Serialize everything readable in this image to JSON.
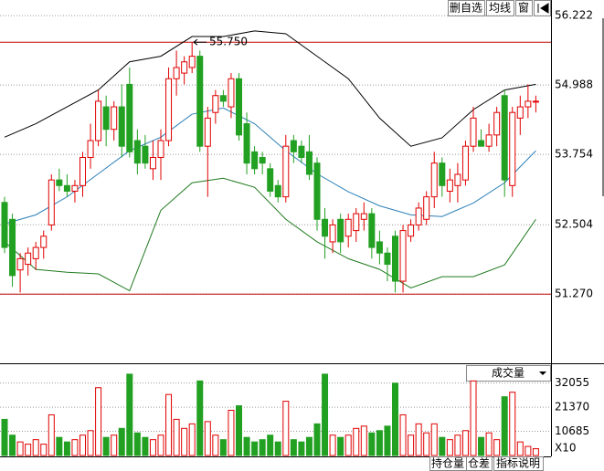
{
  "chart_data": {
    "type": "candlestick",
    "ylim": [
      50.04,
      56.5
    ],
    "yticks": [
      {
        "value": 56.222,
        "label": "56.222"
      },
      {
        "value": 54.988,
        "label": "54.988"
      },
      {
        "value": 53.754,
        "label": "53.754"
      },
      {
        "value": 52.504,
        "label": "52.504"
      },
      {
        "value": 51.27,
        "label": "51.270"
      }
    ],
    "grid": true,
    "colors": {
      "up": "#e00000",
      "down": "#22a022",
      "grid": "#999999",
      "hline": "#c00000"
    },
    "hlines": [
      {
        "value": 55.75,
        "label": "55.750"
      },
      51.27
    ],
    "ohlc": [
      [
        52.9,
        53.0,
        52.0,
        52.1
      ],
      [
        52.6,
        52.7,
        51.4,
        51.6
      ],
      [
        51.7,
        52.0,
        51.3,
        51.9
      ],
      [
        51.8,
        52.1,
        51.6,
        52.0
      ],
      [
        51.9,
        52.2,
        51.7,
        52.1
      ],
      [
        52.1,
        52.4,
        51.9,
        52.3
      ],
      [
        52.5,
        53.4,
        52.4,
        53.3
      ],
      [
        53.3,
        53.5,
        53.1,
        53.2
      ],
      [
        53.2,
        53.4,
        53.0,
        53.1
      ],
      [
        53.1,
        53.3,
        52.9,
        53.2
      ],
      [
        53.2,
        53.8,
        53.0,
        53.7
      ],
      [
        53.7,
        54.3,
        53.5,
        54.0
      ],
      [
        54.0,
        54.9,
        53.9,
        54.7
      ],
      [
        54.6,
        54.8,
        53.9,
        54.2
      ],
      [
        54.2,
        54.7,
        54.0,
        54.6
      ],
      [
        54.6,
        55.0,
        53.7,
        53.9
      ],
      [
        55.0,
        55.3,
        53.7,
        53.8
      ],
      [
        54.0,
        54.2,
        53.4,
        53.6
      ],
      [
        53.9,
        54.1,
        53.5,
        53.6
      ],
      [
        53.5,
        54.0,
        53.3,
        53.7
      ],
      [
        53.7,
        54.2,
        53.3,
        54.0
      ],
      [
        54.0,
        55.3,
        53.9,
        55.1
      ],
      [
        55.1,
        55.6,
        54.8,
        55.3
      ],
      [
        55.2,
        55.5,
        55.0,
        55.4
      ],
      [
        55.3,
        55.75,
        55.2,
        55.5
      ],
      [
        55.5,
        55.6,
        53.8,
        53.9
      ],
      [
        53.9,
        54.6,
        53.0,
        54.4
      ],
      [
        54.5,
        54.9,
        54.3,
        54.8
      ],
      [
        54.8,
        54.9,
        54.6,
        54.7
      ],
      [
        54.6,
        55.2,
        54.4,
        55.1
      ],
      [
        55.1,
        55.2,
        54.0,
        54.1
      ],
      [
        54.3,
        54.5,
        53.4,
        53.6
      ],
      [
        53.8,
        53.9,
        53.4,
        53.5
      ],
      [
        53.7,
        53.8,
        53.4,
        53.6
      ],
      [
        53.5,
        53.6,
        53.0,
        53.1
      ],
      [
        53.2,
        53.3,
        52.9,
        53.0
      ],
      [
        53.0,
        54.1,
        52.9,
        53.9
      ],
      [
        54.0,
        54.1,
        53.6,
        53.8
      ],
      [
        53.9,
        54.0,
        53.6,
        53.7
      ],
      [
        53.8,
        54.1,
        53.3,
        53.4
      ],
      [
        53.6,
        53.7,
        52.4,
        52.6
      ],
      [
        52.6,
        52.8,
        51.9,
        52.3
      ],
      [
        52.2,
        52.6,
        52.0,
        52.5
      ],
      [
        52.6,
        52.7,
        52.0,
        52.2
      ],
      [
        52.3,
        52.7,
        52.1,
        52.6
      ],
      [
        52.4,
        52.8,
        52.2,
        52.7
      ],
      [
        52.6,
        52.9,
        52.4,
        52.7
      ],
      [
        52.7,
        52.8,
        51.9,
        52.1
      ],
      [
        52.2,
        52.4,
        51.8,
        52.0
      ],
      [
        52.0,
        52.1,
        51.5,
        51.8
      ],
      [
        52.3,
        52.4,
        51.3,
        51.5
      ],
      [
        51.5,
        52.5,
        51.3,
        52.4
      ],
      [
        52.3,
        52.6,
        52.2,
        52.5
      ],
      [
        52.5,
        52.9,
        52.4,
        52.8
      ],
      [
        52.6,
        53.1,
        52.5,
        53.0
      ],
      [
        53.0,
        53.8,
        52.8,
        53.6
      ],
      [
        53.6,
        53.7,
        53.0,
        53.2
      ],
      [
        53.1,
        53.5,
        52.9,
        53.3
      ],
      [
        53.2,
        53.6,
        52.9,
        53.4
      ],
      [
        53.3,
        54.0,
        53.2,
        53.9
      ],
      [
        53.9,
        54.6,
        53.8,
        54.4
      ],
      [
        54.0,
        54.2,
        53.9,
        53.9
      ],
      [
        53.9,
        54.3,
        53.8,
        54.1
      ],
      [
        54.1,
        54.6,
        53.9,
        54.5
      ],
      [
        54.8,
        54.9,
        53.0,
        53.3
      ],
      [
        53.2,
        54.6,
        53.0,
        54.5
      ],
      [
        54.4,
        54.8,
        54.1,
        54.6
      ],
      [
        54.6,
        55.0,
        54.4,
        54.7
      ],
      [
        54.7,
        54.8,
        54.5,
        54.7
      ]
    ],
    "bands": {
      "x": [
        0,
        4,
        8,
        12,
        16,
        20,
        24,
        28,
        32,
        36,
        40,
        44,
        48,
        52,
        56,
        60,
        64,
        68
      ],
      "upper": [
        54.06,
        54.3,
        54.6,
        54.9,
        55.4,
        55.5,
        55.85,
        55.85,
        55.95,
        55.9,
        55.5,
        55.1,
        54.4,
        53.9,
        54.05,
        54.55,
        54.9,
        55.0
      ],
      "middle": [
        52.52,
        52.68,
        53.0,
        53.41,
        53.82,
        54.06,
        54.47,
        54.58,
        54.3,
        53.82,
        53.41,
        53.09,
        52.84,
        52.68,
        52.65,
        52.89,
        53.25,
        53.82
      ],
      "lower": [
        52.2,
        51.71,
        51.66,
        51.63,
        51.33,
        52.76,
        53.25,
        53.33,
        53.17,
        52.6,
        52.2,
        51.9,
        51.71,
        51.38,
        51.58,
        51.58,
        51.79,
        52.6
      ],
      "colors": {
        "upper": "#000000",
        "middle": "#2a7fb8",
        "lower": "#1f7a1f"
      }
    },
    "volume": {
      "title": "成交量",
      "ylim": [
        0,
        40000
      ],
      "yticks": [
        32055,
        21370,
        10685
      ],
      "unit_label": "X10",
      "values": [
        16000,
        9000,
        6000,
        5000,
        7000,
        5000,
        18000,
        8000,
        6000,
        7000,
        9000,
        11000,
        30000,
        8000,
        9000,
        12000,
        36000,
        10000,
        8000,
        7000,
        9000,
        27000,
        16000,
        12000,
        14000,
        33000,
        15000,
        9000,
        7000,
        20000,
        22000,
        8000,
        6000,
        7000,
        9000,
        6000,
        24000,
        7000,
        6000,
        8000,
        14000,
        36000,
        9000,
        8000,
        9000,
        12000,
        13000,
        10000,
        11000,
        13000,
        32000,
        18000,
        9000,
        14000,
        10000,
        14000,
        8000,
        7000,
        9000,
        11000,
        33000,
        8000,
        10000,
        7000,
        26000,
        28000,
        6000,
        4000,
        3000
      ]
    }
  },
  "ui": {
    "toolbar": [
      "删自选",
      "均线",
      "窗"
    ],
    "tabs": [
      "持仓量",
      "仓差",
      "指标说明"
    ]
  }
}
